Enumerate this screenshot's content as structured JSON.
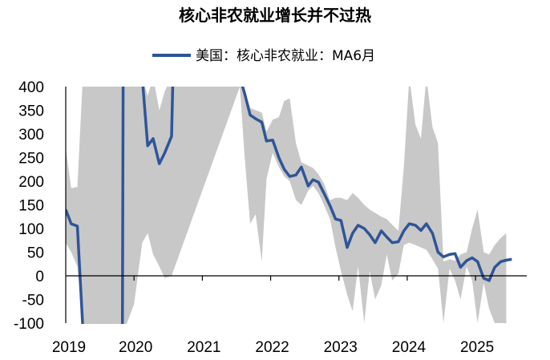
{
  "chart_data": {
    "type": "line",
    "title": "核心非农就业增长并不过热",
    "xlabel": "",
    "ylabel": "",
    "ylim": [
      -100,
      400
    ],
    "xlim": [
      2019.0,
      2025.75
    ],
    "yticks": [
      400,
      350,
      300,
      250,
      200,
      150,
      100,
      50,
      0,
      -50,
      -100
    ],
    "xtick_labels": [
      "2019",
      "2020",
      "2021",
      "2022",
      "2023",
      "2024",
      "2025"
    ],
    "grid": false,
    "legend_position": "top-center",
    "colors": {
      "line": "#2f5597",
      "band": "#c8c8c8",
      "axis": "#000000"
    },
    "series": [
      {
        "name": "美国：核心非农就业：MA6月",
        "style": "line",
        "points": [
          [
            2019.0,
            140
          ],
          [
            2019.08,
            110
          ],
          [
            2019.17,
            105
          ],
          [
            2019.25,
            -110
          ],
          [
            2019.83,
            -110
          ],
          [
            2019.84,
            420
          ],
          [
            2020.12,
            420
          ],
          [
            2020.2,
            275
          ],
          [
            2020.28,
            290
          ],
          [
            2020.37,
            237
          ],
          [
            2020.45,
            260
          ],
          [
            2020.55,
            295
          ],
          [
            2020.57,
            420
          ],
          [
            2021.55,
            420
          ],
          [
            2021.62,
            385
          ],
          [
            2021.7,
            340
          ],
          [
            2021.78,
            332
          ],
          [
            2021.87,
            325
          ],
          [
            2021.94,
            285
          ],
          [
            2022.03,
            287
          ],
          [
            2022.12,
            250
          ],
          [
            2022.2,
            225
          ],
          [
            2022.28,
            210
          ],
          [
            2022.37,
            213
          ],
          [
            2022.45,
            230
          ],
          [
            2022.55,
            190
          ],
          [
            2022.62,
            203
          ],
          [
            2022.7,
            198
          ],
          [
            2022.78,
            175
          ],
          [
            2022.87,
            148
          ],
          [
            2022.95,
            120
          ],
          [
            2023.03,
            117
          ],
          [
            2023.12,
            60
          ],
          [
            2023.2,
            90
          ],
          [
            2023.28,
            107
          ],
          [
            2023.37,
            100
          ],
          [
            2023.45,
            87
          ],
          [
            2023.53,
            70
          ],
          [
            2023.62,
            95
          ],
          [
            2023.7,
            82
          ],
          [
            2023.78,
            70
          ],
          [
            2023.87,
            72
          ],
          [
            2023.95,
            95
          ],
          [
            2024.03,
            110
          ],
          [
            2024.12,
            107
          ],
          [
            2024.2,
            96
          ],
          [
            2024.28,
            110
          ],
          [
            2024.37,
            90
          ],
          [
            2024.45,
            50
          ],
          [
            2024.53,
            40
          ],
          [
            2024.62,
            45
          ],
          [
            2024.7,
            47
          ],
          [
            2024.78,
            18
          ],
          [
            2024.87,
            32
          ],
          [
            2024.95,
            38
          ],
          [
            2025.03,
            30
          ],
          [
            2025.12,
            -5
          ],
          [
            2025.2,
            -10
          ],
          [
            2025.28,
            18
          ],
          [
            2025.37,
            30
          ],
          [
            2025.45,
            33
          ],
          [
            2025.53,
            35
          ]
        ]
      },
      {
        "name": "",
        "style": "band",
        "upper": [
          [
            2019.0,
            270
          ],
          [
            2019.08,
            185
          ],
          [
            2019.17,
            188
          ],
          [
            2019.25,
            420
          ],
          [
            2019.87,
            420
          ],
          [
            2020.0,
            420
          ],
          [
            2020.12,
            420
          ],
          [
            2020.2,
            380
          ],
          [
            2020.28,
            420
          ],
          [
            2020.37,
            350
          ],
          [
            2020.45,
            390
          ],
          [
            2020.55,
            420
          ],
          [
            2021.55,
            420
          ],
          [
            2021.62,
            390
          ],
          [
            2021.7,
            355
          ],
          [
            2021.78,
            350
          ],
          [
            2021.87,
            345
          ],
          [
            2021.94,
            305
          ],
          [
            2022.03,
            330
          ],
          [
            2022.12,
            335
          ],
          [
            2022.2,
            370
          ],
          [
            2022.28,
            375
          ],
          [
            2022.37,
            280
          ],
          [
            2022.45,
            240
          ],
          [
            2022.55,
            233
          ],
          [
            2022.62,
            228
          ],
          [
            2022.7,
            215
          ],
          [
            2022.78,
            195
          ],
          [
            2022.87,
            160
          ],
          [
            2022.95,
            165
          ],
          [
            2023.03,
            165
          ],
          [
            2023.12,
            160
          ],
          [
            2023.2,
            175
          ],
          [
            2023.28,
            165
          ],
          [
            2023.37,
            150
          ],
          [
            2023.45,
            140
          ],
          [
            2023.53,
            133
          ],
          [
            2023.62,
            125
          ],
          [
            2023.7,
            120
          ],
          [
            2023.78,
            108
          ],
          [
            2023.87,
            95
          ],
          [
            2023.95,
            230
          ],
          [
            2024.03,
            420
          ],
          [
            2024.12,
            320
          ],
          [
            2024.2,
            290
          ],
          [
            2024.28,
            420
          ],
          [
            2024.37,
            315
          ],
          [
            2024.45,
            280
          ],
          [
            2024.53,
            30
          ],
          [
            2024.62,
            35
          ],
          [
            2024.7,
            32
          ],
          [
            2024.78,
            45
          ],
          [
            2024.87,
            50
          ],
          [
            2024.95,
            100
          ],
          [
            2025.03,
            140
          ],
          [
            2025.12,
            50
          ],
          [
            2025.2,
            45
          ],
          [
            2025.28,
            65
          ],
          [
            2025.37,
            80
          ],
          [
            2025.45,
            90
          ]
        ],
        "lower": [
          [
            2019.0,
            70
          ],
          [
            2019.08,
            50
          ],
          [
            2019.17,
            20
          ],
          [
            2019.25,
            -110
          ],
          [
            2019.87,
            -110
          ],
          [
            2020.0,
            -60
          ],
          [
            2020.12,
            70
          ],
          [
            2020.2,
            90
          ],
          [
            2020.28,
            45
          ],
          [
            2020.37,
            20
          ],
          [
            2020.45,
            -5
          ],
          [
            2020.55,
            0
          ],
          [
            2021.55,
            400
          ],
          [
            2021.62,
            250
          ],
          [
            2021.7,
            110
          ],
          [
            2021.78,
            130
          ],
          [
            2021.87,
            30
          ],
          [
            2021.94,
            205
          ],
          [
            2022.03,
            260
          ],
          [
            2022.12,
            230
          ],
          [
            2022.2,
            210
          ],
          [
            2022.28,
            200
          ],
          [
            2022.37,
            160
          ],
          [
            2022.45,
            150
          ],
          [
            2022.55,
            180
          ],
          [
            2022.62,
            190
          ],
          [
            2022.7,
            175
          ],
          [
            2022.78,
            150
          ],
          [
            2022.87,
            120
          ],
          [
            2022.95,
            60
          ],
          [
            2023.03,
            10
          ],
          [
            2023.12,
            -40
          ],
          [
            2023.2,
            -75
          ],
          [
            2023.28,
            20
          ],
          [
            2023.37,
            -100
          ],
          [
            2023.45,
            10
          ],
          [
            2023.53,
            -50
          ],
          [
            2023.62,
            -20
          ],
          [
            2023.7,
            45
          ],
          [
            2023.78,
            -10
          ],
          [
            2023.87,
            5
          ],
          [
            2023.95,
            65
          ],
          [
            2024.03,
            70
          ],
          [
            2024.12,
            65
          ],
          [
            2024.2,
            60
          ],
          [
            2024.28,
            55
          ],
          [
            2024.37,
            35
          ],
          [
            2024.45,
            15
          ],
          [
            2024.53,
            -100
          ],
          [
            2024.62,
            15
          ],
          [
            2024.7,
            -10
          ],
          [
            2024.78,
            -50
          ],
          [
            2024.87,
            20
          ],
          [
            2024.95,
            -10
          ],
          [
            2025.03,
            -100
          ],
          [
            2025.12,
            -15
          ],
          [
            2025.2,
            -70
          ],
          [
            2025.28,
            -100
          ],
          [
            2025.37,
            -100
          ],
          [
            2025.45,
            -100
          ]
        ]
      }
    ]
  }
}
